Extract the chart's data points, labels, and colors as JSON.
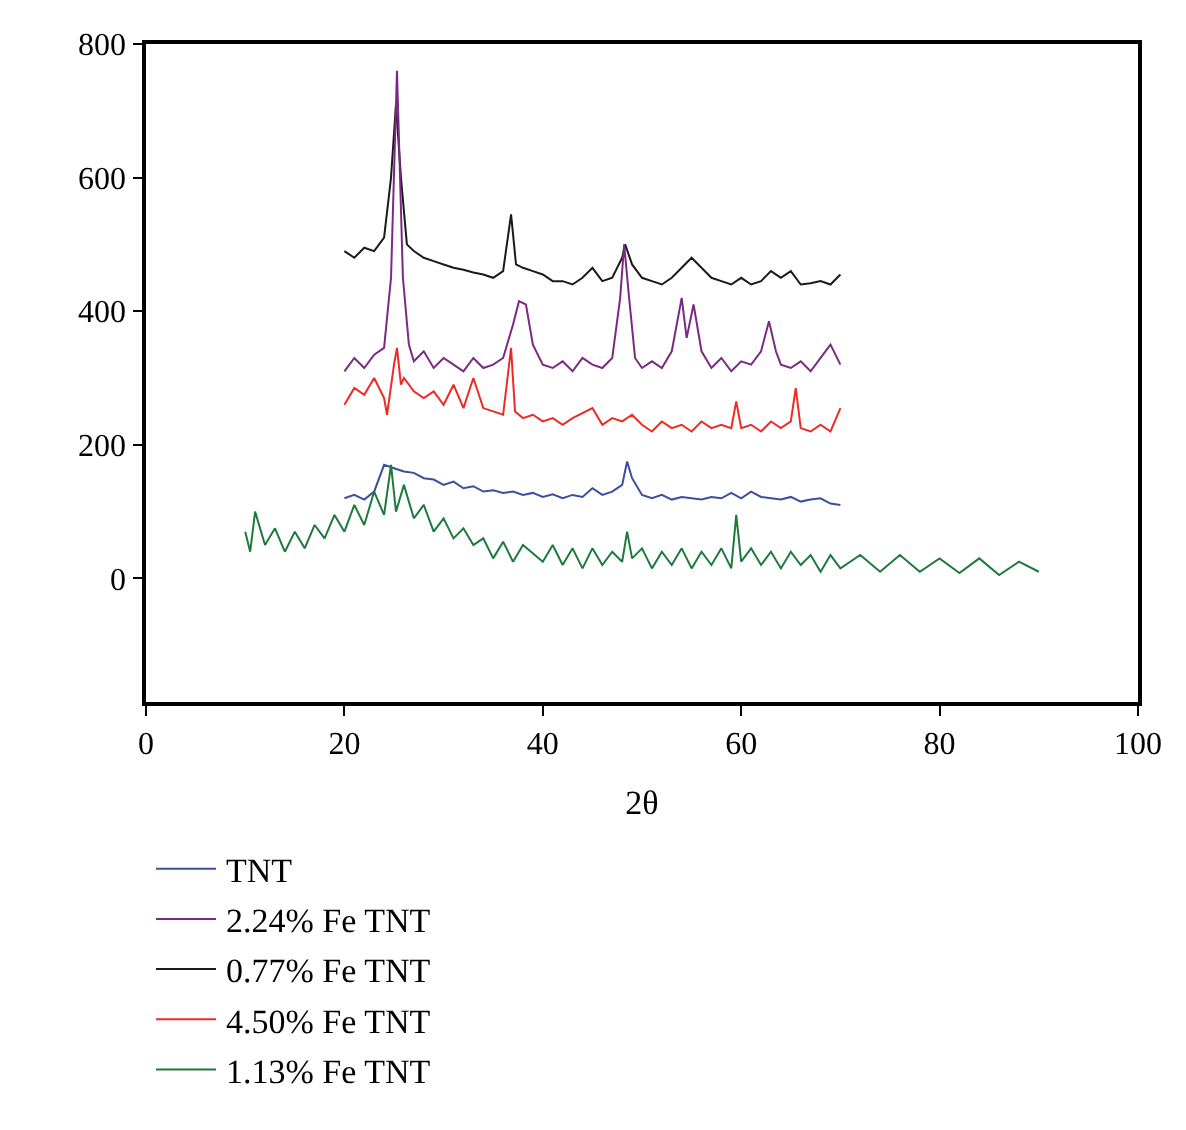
{
  "chart_data": {
    "type": "line",
    "xlabel": "2θ",
    "xlim": [
      0,
      100
    ],
    "xticks": [
      0,
      20,
      40,
      60,
      80,
      100
    ],
    "ylim": [
      -185,
      800
    ],
    "yticks": [
      0,
      200,
      400,
      600,
      800
    ],
    "legend": "bottom",
    "marker": "none",
    "line_style": "solid",
    "series": [
      {
        "name": "TNT",
        "color": "#3a4fa0",
        "x": [
          20,
          21,
          22,
          23,
          24,
          25,
          26,
          27,
          28,
          29,
          30,
          31,
          32,
          33,
          34,
          35,
          36,
          37,
          38,
          39,
          40,
          41,
          42,
          43,
          44,
          45,
          46,
          47,
          48,
          48.5,
          49,
          50,
          51,
          52,
          53,
          54,
          55,
          56,
          57,
          58,
          59,
          60,
          61,
          62,
          63,
          64,
          65,
          66,
          67,
          68,
          69,
          70
        ],
        "values": [
          120,
          125,
          118,
          130,
          170,
          165,
          160,
          158,
          150,
          148,
          140,
          145,
          135,
          138,
          130,
          132,
          128,
          130,
          125,
          128,
          122,
          126,
          120,
          125,
          122,
          135,
          125,
          130,
          140,
          175,
          150,
          125,
          120,
          125,
          118,
          122,
          120,
          118,
          122,
          120,
          128,
          120,
          130,
          122,
          120,
          118,
          122,
          115,
          118,
          120,
          112,
          110
        ]
      },
      {
        "name": "0.77% Fe TNT",
        "color": "#1a1a1a",
        "x": [
          20,
          21,
          22,
          23,
          24,
          24.7,
          25.2,
          25.7,
          26.3,
          27,
          28,
          29,
          30,
          31,
          32,
          33,
          34,
          35,
          36,
          36.8,
          37.3,
          38,
          39,
          40,
          41,
          42,
          43,
          44,
          45,
          46,
          47,
          48,
          48.3,
          49,
          50,
          51,
          52,
          53,
          54,
          55,
          56,
          57,
          58,
          59,
          60,
          61,
          62,
          63,
          64,
          65,
          66,
          67,
          68,
          69,
          70
        ],
        "values": [
          490,
          480,
          495,
          490,
          510,
          600,
          710,
          600,
          500,
          490,
          480,
          475,
          470,
          465,
          462,
          458,
          455,
          450,
          460,
          545,
          470,
          465,
          460,
          455,
          445,
          445,
          440,
          450,
          465,
          445,
          450,
          480,
          500,
          470,
          450,
          445,
          440,
          450,
          465,
          480,
          465,
          450,
          445,
          440,
          450,
          440,
          445,
          460,
          450,
          460,
          440,
          442,
          445,
          440,
          455
        ]
      },
      {
        "name": "1.13% Fe TNT",
        "color": "#1e7a3c",
        "x": [
          10,
          10.5,
          11,
          12,
          13,
          14,
          15,
          16,
          17,
          18,
          19,
          20,
          21,
          22,
          23,
          24,
          24.7,
          25.2,
          26,
          27,
          28,
          29,
          30,
          31,
          32,
          33,
          34,
          35,
          36,
          37,
          38,
          40,
          41,
          42,
          43,
          44,
          45,
          46,
          47,
          48,
          48.5,
          49,
          50,
          51,
          52,
          53,
          54,
          55,
          56,
          57,
          58,
          59,
          59.5,
          60,
          61,
          62,
          63,
          64,
          65,
          66,
          67,
          68,
          69,
          70,
          72,
          74,
          76,
          78,
          80,
          82,
          84,
          86,
          88,
          90
        ],
        "values": [
          70,
          40,
          100,
          50,
          75,
          40,
          70,
          45,
          80,
          60,
          95,
          70,
          110,
          80,
          130,
          95,
          170,
          100,
          140,
          90,
          110,
          70,
          90,
          60,
          75,
          50,
          60,
          30,
          55,
          25,
          50,
          25,
          50,
          20,
          45,
          15,
          45,
          20,
          40,
          25,
          70,
          30,
          45,
          15,
          40,
          20,
          45,
          15,
          40,
          20,
          45,
          15,
          95,
          25,
          45,
          20,
          40,
          15,
          40,
          20,
          35,
          10,
          35,
          15,
          35,
          10,
          35,
          10,
          30,
          8,
          30,
          5,
          25,
          10
        ]
      },
      {
        "name": "2.24% Fe TNT",
        "color": "#7b2a82",
        "x": [
          20,
          21,
          22,
          23,
          24,
          24.7,
          25.3,
          25.9,
          26.5,
          27,
          28,
          29,
          30,
          31,
          32,
          33,
          34,
          35,
          36,
          37,
          37.6,
          38.3,
          39,
          40,
          41,
          42,
          43,
          44,
          45,
          46,
          47,
          47.8,
          48.2,
          48.7,
          49.3,
          50,
          51,
          52,
          53,
          54,
          54.5,
          55.2,
          56,
          57,
          58,
          59,
          60,
          61,
          62,
          62.8,
          63.5,
          64,
          65,
          66,
          67,
          68,
          69,
          70
        ],
        "values": [
          310,
          330,
          315,
          335,
          345,
          450,
          760,
          450,
          350,
          325,
          340,
          315,
          330,
          320,
          310,
          330,
          315,
          320,
          330,
          380,
          415,
          410,
          350,
          320,
          315,
          325,
          310,
          330,
          320,
          315,
          330,
          420,
          500,
          420,
          330,
          315,
          325,
          315,
          340,
          420,
          360,
          410,
          340,
          315,
          330,
          310,
          325,
          320,
          340,
          385,
          340,
          320,
          315,
          325,
          310,
          330,
          350,
          320
        ]
      },
      {
        "name": "4.50% Fe TNT",
        "color": "#ee2a24",
        "x": [
          20,
          21,
          22,
          23,
          24,
          24.3,
          25,
          25.3,
          25.7,
          26,
          27,
          28,
          29,
          30,
          31,
          32,
          33,
          34,
          35,
          36,
          36.8,
          37.2,
          38,
          39,
          40,
          41,
          42,
          43,
          45,
          46,
          47,
          48,
          49,
          50,
          51,
          52,
          53,
          54,
          55,
          56,
          57,
          58,
          59,
          59.5,
          60,
          61,
          62,
          63,
          64,
          65,
          65.5,
          66,
          67,
          68,
          69,
          70
        ],
        "values": [
          260,
          285,
          275,
          300,
          270,
          245,
          320,
          345,
          290,
          300,
          280,
          270,
          280,
          260,
          290,
          255,
          300,
          255,
          250,
          245,
          345,
          250,
          240,
          245,
          235,
          240,
          230,
          240,
          255,
          230,
          240,
          235,
          245,
          230,
          220,
          235,
          225,
          230,
          220,
          235,
          225,
          230,
          225,
          265,
          225,
          230,
          220,
          235,
          225,
          235,
          285,
          225,
          220,
          230,
          220,
          255
        ]
      }
    ]
  }
}
